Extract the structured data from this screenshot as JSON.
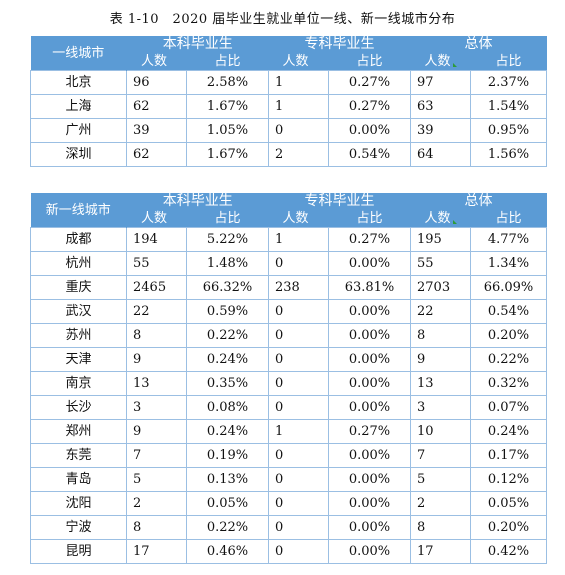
{
  "caption": "表 1-10　2020 届毕业生就业单位一线、新一线城市分布",
  "headers": {
    "bachelor": "本科毕业生",
    "junior": "专科毕业生",
    "total": "总体",
    "count": "人数",
    "ratio": "占比"
  },
  "table1": {
    "city_header": "一线城市",
    "rows": [
      {
        "city": "北京",
        "b_n": "96",
        "b_p": "2.58%",
        "j_n": "1",
        "j_p": "0.27%",
        "t_n": "97",
        "t_p": "2.37%"
      },
      {
        "city": "上海",
        "b_n": "62",
        "b_p": "1.67%",
        "j_n": "1",
        "j_p": "0.27%",
        "t_n": "63",
        "t_p": "1.54%"
      },
      {
        "city": "广州",
        "b_n": "39",
        "b_p": "1.05%",
        "j_n": "0",
        "j_p": "0.00%",
        "t_n": "39",
        "t_p": "0.95%"
      },
      {
        "city": "深圳",
        "b_n": "62",
        "b_p": "1.67%",
        "j_n": "2",
        "j_p": "0.54%",
        "t_n": "64",
        "t_p": "1.56%"
      }
    ]
  },
  "table2": {
    "city_header": "新一线城市",
    "rows": [
      {
        "city": "成都",
        "b_n": "194",
        "b_p": "5.22%",
        "j_n": "1",
        "j_p": "0.27%",
        "t_n": "195",
        "t_p": "4.77%"
      },
      {
        "city": "杭州",
        "b_n": "55",
        "b_p": "1.48%",
        "j_n": "0",
        "j_p": "0.00%",
        "t_n": "55",
        "t_p": "1.34%"
      },
      {
        "city": "重庆",
        "b_n": "2465",
        "b_p": "66.32%",
        "j_n": "238",
        "j_p": "63.81%",
        "t_n": "2703",
        "t_p": "66.09%"
      },
      {
        "city": "武汉",
        "b_n": "22",
        "b_p": "0.59%",
        "j_n": "0",
        "j_p": "0.00%",
        "t_n": "22",
        "t_p": "0.54%"
      },
      {
        "city": "苏州",
        "b_n": "8",
        "b_p": "0.22%",
        "j_n": "0",
        "j_p": "0.00%",
        "t_n": "8",
        "t_p": "0.20%"
      },
      {
        "city": "天津",
        "b_n": "9",
        "b_p": "0.24%",
        "j_n": "0",
        "j_p": "0.00%",
        "t_n": "9",
        "t_p": "0.22%"
      },
      {
        "city": "南京",
        "b_n": "13",
        "b_p": "0.35%",
        "j_n": "0",
        "j_p": "0.00%",
        "t_n": "13",
        "t_p": "0.32%"
      },
      {
        "city": "长沙",
        "b_n": "3",
        "b_p": "0.08%",
        "j_n": "0",
        "j_p": "0.00%",
        "t_n": "3",
        "t_p": "0.07%"
      },
      {
        "city": "郑州",
        "b_n": "9",
        "b_p": "0.24%",
        "j_n": "1",
        "j_p": "0.27%",
        "t_n": "10",
        "t_p": "0.24%"
      },
      {
        "city": "东莞",
        "b_n": "7",
        "b_p": "0.19%",
        "j_n": "0",
        "j_p": "0.00%",
        "t_n": "7",
        "t_p": "0.17%"
      },
      {
        "city": "青岛",
        "b_n": "5",
        "b_p": "0.13%",
        "j_n": "0",
        "j_p": "0.00%",
        "t_n": "5",
        "t_p": "0.12%"
      },
      {
        "city": "沈阳",
        "b_n": "2",
        "b_p": "0.05%",
        "j_n": "0",
        "j_p": "0.00%",
        "t_n": "2",
        "t_p": "0.05%"
      },
      {
        "city": "宁波",
        "b_n": "8",
        "b_p": "0.22%",
        "j_n": "0",
        "j_p": "0.00%",
        "t_n": "8",
        "t_p": "0.20%"
      },
      {
        "city": "昆明",
        "b_n": "17",
        "b_p": "0.46%",
        "j_n": "0",
        "j_p": "0.00%",
        "t_n": "17",
        "t_p": "0.42%"
      }
    ]
  },
  "colors": {
    "header_bg": "#5b9bd5",
    "border": "#9bbfe3",
    "marker": "#2e9b3a"
  }
}
